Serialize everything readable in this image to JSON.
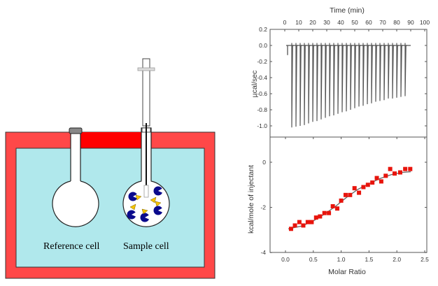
{
  "diagram": {
    "reference_label": "Reference cell",
    "sample_label": "Sample cell",
    "colors": {
      "jacket": "#ff4848",
      "jacket_top": "#ff0000",
      "bath": "#b0e8ec",
      "macromolecule": "#0a0a8c",
      "ligand": "#f5c400"
    }
  },
  "chart_data": [
    {
      "type": "line",
      "xlabel": "Time (min)",
      "ylabel": "µcal/sec",
      "xlim": [
        0,
        100
      ],
      "ylim": [
        -1.2,
        0.2
      ],
      "xticks": [
        "0",
        "10",
        "20",
        "30",
        "40",
        "50",
        "60",
        "70",
        "80",
        "90",
        "100"
      ],
      "yticks": [
        "0.2",
        "0.0",
        "-0.2",
        "-0.4",
        "-0.6",
        "-0.8",
        "-1.0"
      ],
      "x_axis_position": "top",
      "baseline": 0.0,
      "first_injection": {
        "time": 2,
        "peak": -0.12
      },
      "injection_times": [
        5,
        8,
        11,
        14,
        17,
        20,
        23,
        26,
        29,
        32,
        35,
        38,
        41,
        44,
        47,
        50,
        53,
        56,
        59,
        62,
        65,
        68,
        71,
        74,
        77,
        80,
        83,
        86
      ],
      "peak_values": [
        -1.02,
        -1.01,
        -1.0,
        -0.99,
        -0.97,
        -0.95,
        -0.94,
        -0.92,
        -0.9,
        -0.88,
        -0.87,
        -0.85,
        -0.83,
        -0.82,
        -0.8,
        -0.78,
        -0.76,
        -0.75,
        -0.73,
        -0.72,
        -0.7,
        -0.69,
        -0.68,
        -0.66,
        -0.66,
        -0.65,
        -0.64,
        -0.63
      ],
      "color": "#555555"
    },
    {
      "type": "scatter",
      "xlabel": "Molar Ratio",
      "ylabel": "kcal/mole of injectant",
      "xlim": [
        -0.25,
        2.5
      ],
      "ylim": [
        -4,
        0.8
      ],
      "xticks": [
        "0.0",
        "0.5",
        "1.0",
        "1.5",
        "2.0",
        "2.5"
      ],
      "yticks": [
        "0",
        "-2",
        "-4"
      ],
      "series": [
        {
          "x": [
            0.1,
            0.17,
            0.25,
            0.32,
            0.4,
            0.47,
            0.55,
            0.62,
            0.7,
            0.78,
            0.85,
            0.93,
            1.0,
            1.08,
            1.16,
            1.24,
            1.32,
            1.4,
            1.48,
            1.56,
            1.64,
            1.72,
            1.8,
            1.88,
            1.96,
            2.06,
            2.15,
            2.24
          ],
          "y": [
            -2.95,
            -2.8,
            -2.65,
            -2.8,
            -2.65,
            -2.65,
            -2.45,
            -2.4,
            -2.25,
            -2.25,
            -1.95,
            -2.05,
            -1.7,
            -1.45,
            -1.45,
            -1.15,
            -1.35,
            -1.1,
            -1.0,
            -0.9,
            -0.7,
            -0.85,
            -0.6,
            -0.3,
            -0.5,
            -0.45,
            -0.3,
            -0.3
          ],
          "marker": "square",
          "color": "#e8140c"
        }
      ],
      "fit": {
        "x": [
          0.05,
          0.3,
          0.5,
          0.7,
          0.9,
          1.1,
          1.3,
          1.5,
          1.7,
          1.9,
          2.1,
          2.25
        ],
        "y": [
          -2.95,
          -2.82,
          -2.6,
          -2.3,
          -1.95,
          -1.55,
          -1.2,
          -0.95,
          -0.72,
          -0.55,
          -0.45,
          -0.42
        ],
        "color": "#666666"
      }
    }
  ]
}
